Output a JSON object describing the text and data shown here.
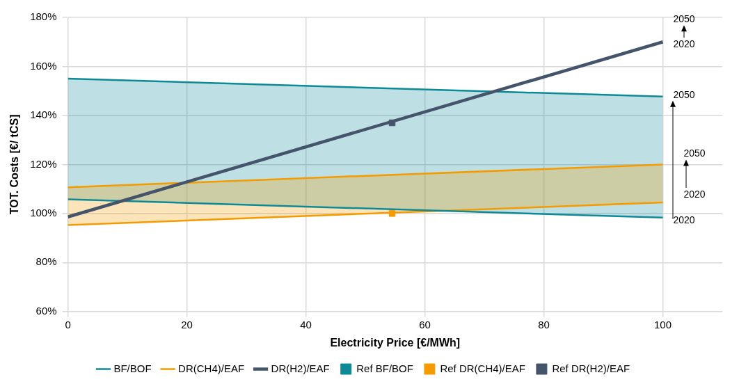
{
  "chart_data": {
    "type": "line",
    "xlabel": "Electricity Price [€/MWh]",
    "ylabel": "TOT. Costs [€/ tCS]",
    "x": [
      0,
      100
    ],
    "xlim": [
      0,
      110
    ],
    "xticks": [
      0,
      20,
      40,
      60,
      80,
      100
    ],
    "ylim": [
      60,
      180
    ],
    "yticks": [
      {
        "value": 60,
        "label": "60%"
      },
      {
        "value": 80,
        "label": "80%"
      },
      {
        "value": 100,
        "label": "100%"
      },
      {
        "value": 120,
        "label": "120%"
      },
      {
        "value": 140,
        "label": "140%"
      },
      {
        "value": 160,
        "label": "160%"
      },
      {
        "value": 180,
        "label": "180%"
      }
    ],
    "grid": true,
    "legend": "bottom",
    "marker": "none",
    "series": [
      {
        "name": "BF/BOF",
        "color": "#0e8a96",
        "values": [
          155.0,
          147.7
        ],
        "lower": [
          105.8,
          98.3
        ],
        "upper": [
          155.0,
          147.7
        ]
      },
      {
        "name": "DR(CH4)/EAF",
        "color": "#f59b00",
        "values": [
          110.7,
          120.0
        ],
        "lower": [
          95.3,
          104.5
        ],
        "upper": [
          110.7,
          120.0
        ]
      },
      {
        "name": "DR(H2)/EAF",
        "color": "#44546a",
        "values": [
          98.6,
          170.0
        ]
      },
      {
        "name": "Ref BF/BOF",
        "type": "scatter",
        "marker": "square",
        "color": "#0e8a96",
        "values": [
          null,
          null
        ]
      },
      {
        "name": "Ref DR(CH4)/EAF",
        "type": "scatter",
        "marker": "square",
        "color": "#f59b00",
        "x": [
          54.5
        ],
        "values": [
          100
        ]
      },
      {
        "name": "Ref DR(H2)/EAF",
        "type": "scatter",
        "marker": "square",
        "color": "#44546a",
        "x": [
          54.5
        ],
        "values": [
          137
        ]
      },
      {
        "color": "#0e8a96",
        "values": [
          105.8,
          98.3
        ]
      },
      {
        "color": "#f59b00",
        "values": [
          95.3,
          104.5
        ]
      }
    ],
    "annotations": [
      "2020",
      "2050",
      "2020",
      "2050",
      "2020",
      "2050"
    ]
  }
}
